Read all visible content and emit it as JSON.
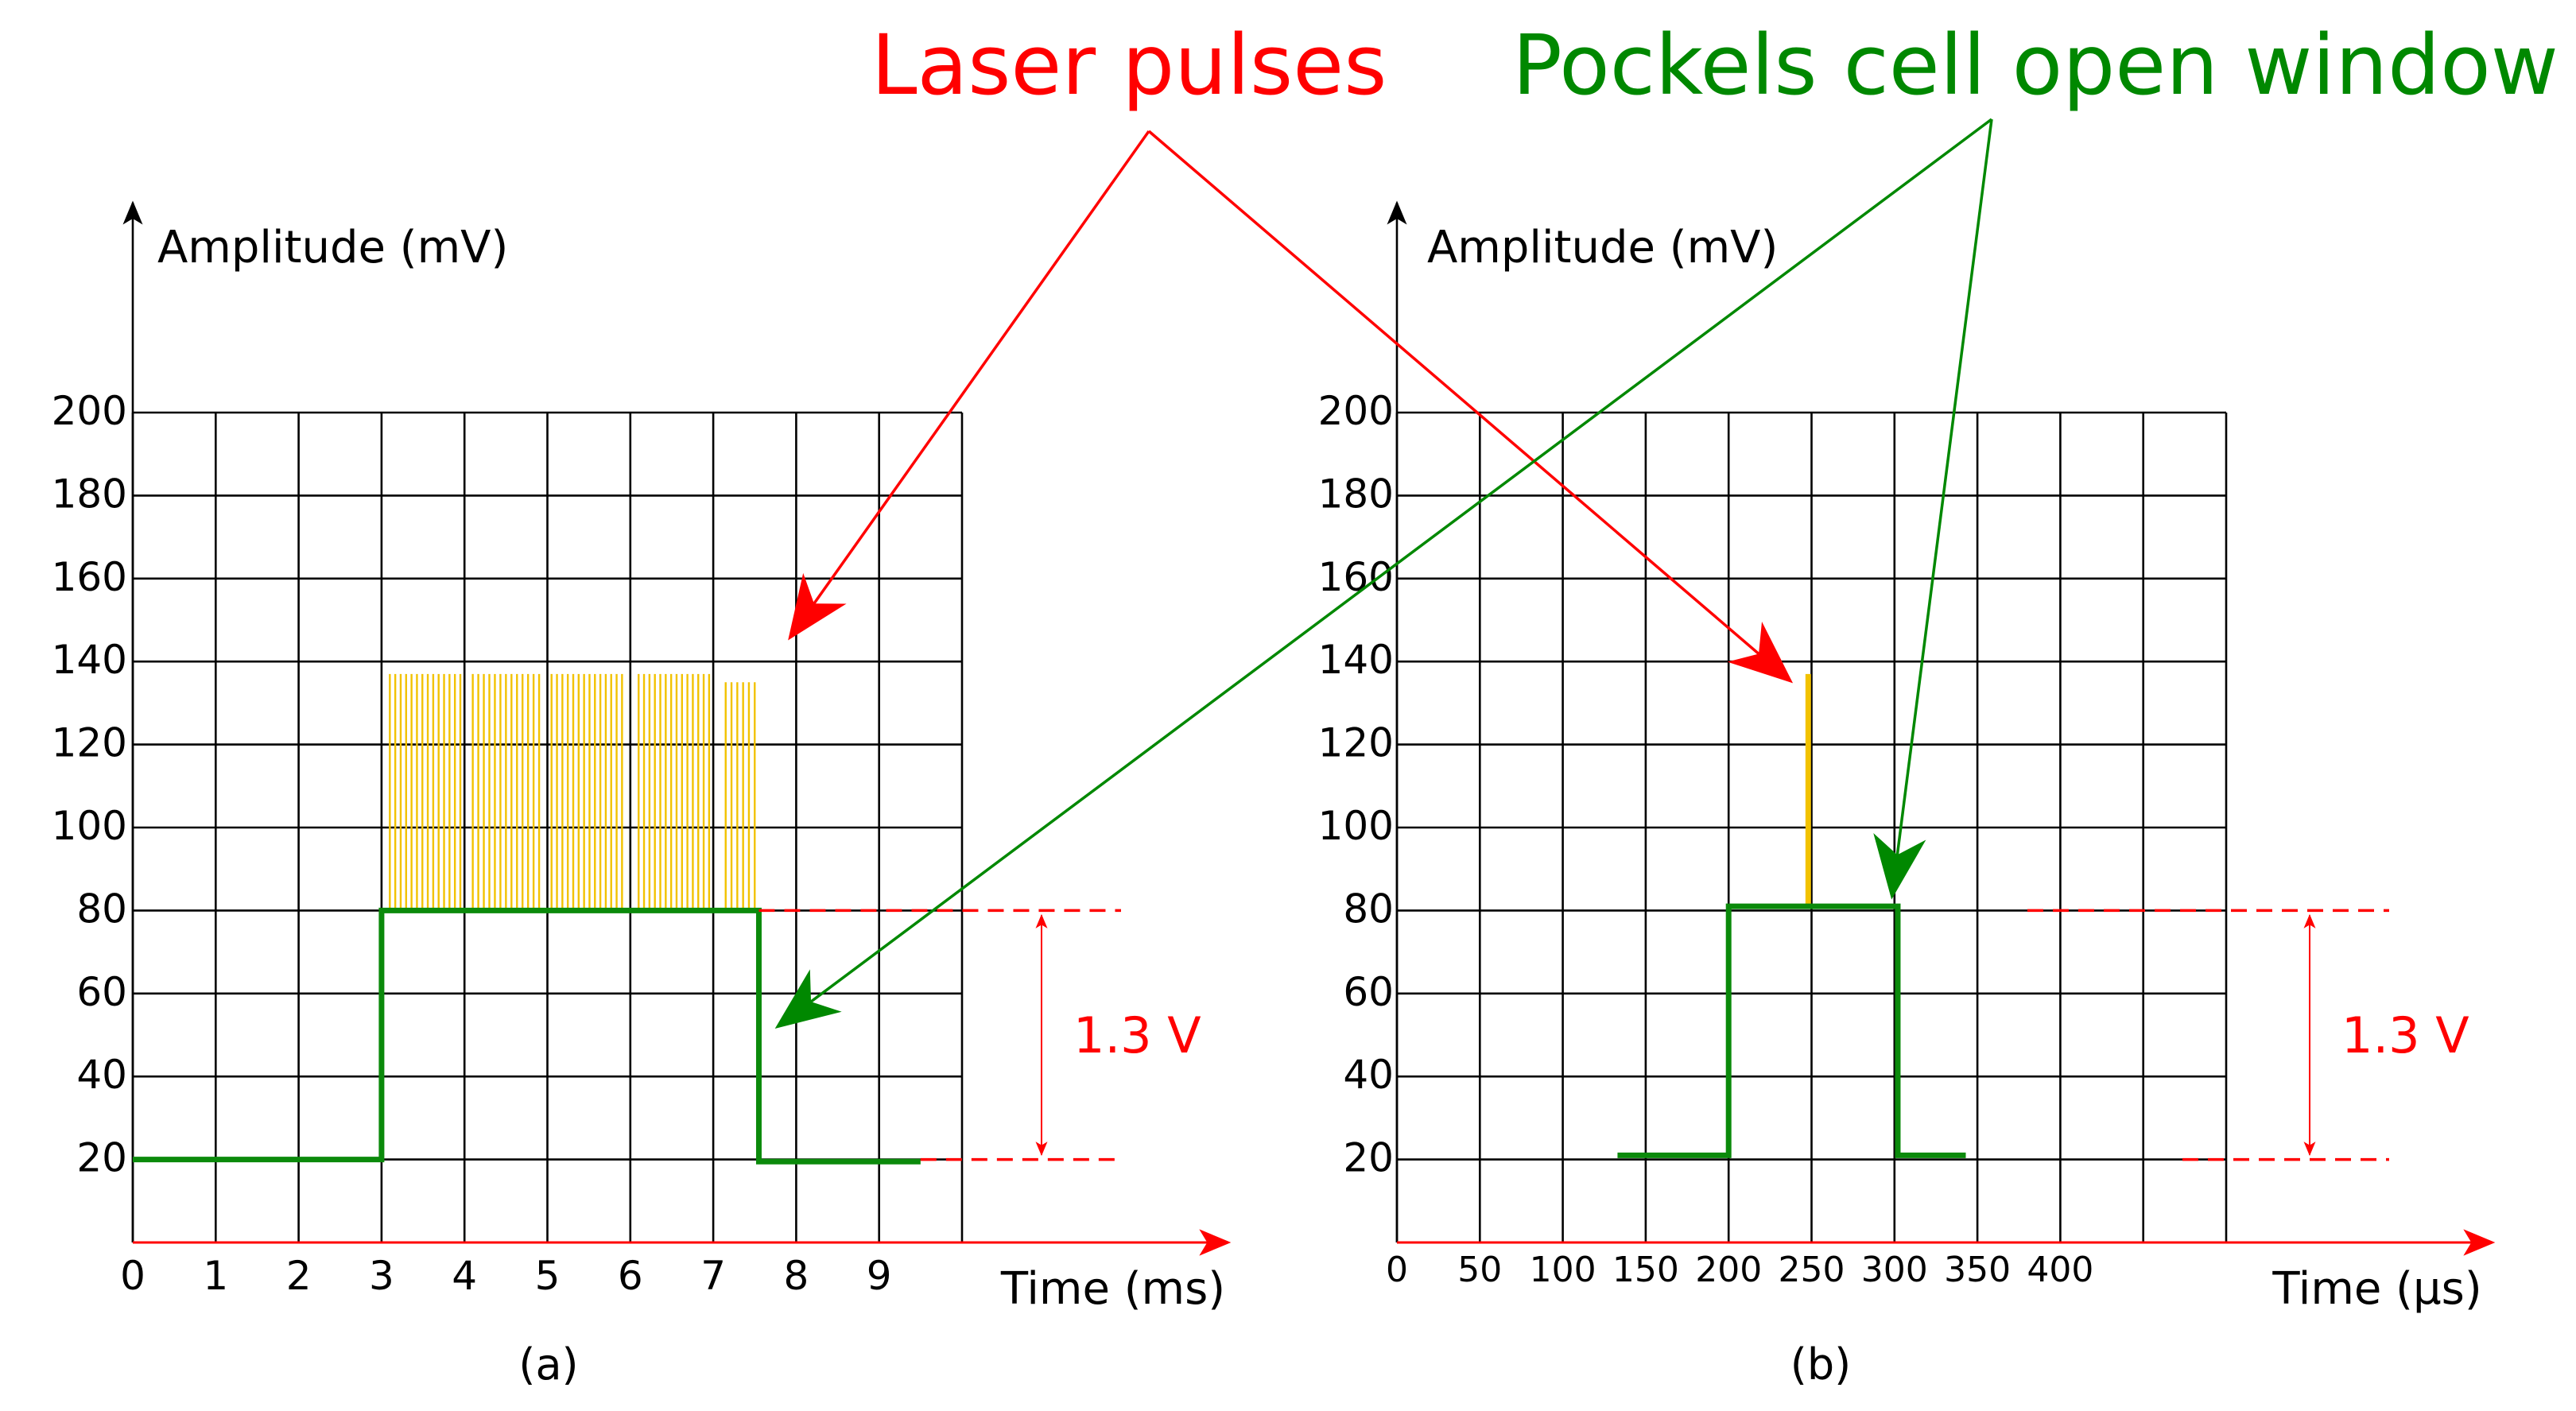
{
  "chart_data": [
    {
      "type": "line",
      "panel_label": "(a)",
      "xlabel": "Time (ms)",
      "ylabel": "Amplitude (mV)",
      "x_ticks": [
        "0",
        "1",
        "2",
        "3",
        "4",
        "5",
        "6",
        "7",
        "8",
        "9"
      ],
      "y_ticks": [
        "20",
        "40",
        "60",
        "80",
        "100",
        "120",
        "140",
        "160",
        "180",
        "200"
      ],
      "xlim": [
        0,
        10
      ],
      "ylim": [
        0,
        200
      ],
      "grid": true,
      "series": [
        {
          "name": "Pockels cell open window",
          "color": "#0b8a0b",
          "points": [
            [
              0,
              20
            ],
            [
              3,
              20
            ],
            [
              3,
              80
            ],
            [
              7.55,
              80
            ],
            [
              7.55,
              19.5
            ],
            [
              9.5,
              19.5
            ]
          ]
        }
      ],
      "pulse_groups": {
        "name": "Laser pulses",
        "color": "#f2c200",
        "base": 80,
        "groups": [
          {
            "start": 3.1,
            "end": 3.95,
            "top": 137
          },
          {
            "start": 4.1,
            "end": 4.9,
            "top": 137
          },
          {
            "start": 5.05,
            "end": 5.9,
            "top": 137
          },
          {
            "start": 6.1,
            "end": 6.95,
            "top": 137
          },
          {
            "start": 7.15,
            "end": 7.5,
            "top": 135
          }
        ]
      },
      "threshold": {
        "high": 80,
        "low": 20,
        "label": "1.3 V",
        "color": "#ff0000"
      }
    },
    {
      "type": "line",
      "panel_label": "(b)",
      "xlabel": "Time (μs)",
      "ylabel": "Amplitude (mV)",
      "x_ticks": [
        "0",
        "50",
        "100",
        "150",
        "200",
        "250",
        "300",
        "350",
        "400"
      ],
      "y_ticks": [
        "20",
        "40",
        "60",
        "80",
        "100",
        "120",
        "140",
        "160",
        "180",
        "200"
      ],
      "xlim": [
        0,
        500
      ],
      "ylim": [
        0,
        200
      ],
      "grid": true,
      "series": [
        {
          "name": "Pockels cell open window",
          "color": "#0b8a0b",
          "points": [
            [
              133,
              21
            ],
            [
              200,
              21
            ],
            [
              200,
              81
            ],
            [
              302,
              81
            ],
            [
              302,
              21
            ],
            [
              343,
              21
            ]
          ]
        }
      ],
      "laser_pulse": {
        "name": "Laser pulses",
        "x": 248,
        "base": 81,
        "top": 137,
        "color": "#f2c200"
      },
      "threshold": {
        "high": 80,
        "low": 20,
        "label": "1.3 V",
        "color": "#ff0000"
      }
    }
  ],
  "annotations": {
    "laser_pulses": "Laser pulses",
    "pockels_window": "Pockels cell open window",
    "red": "#ff0000",
    "green": "#008800"
  }
}
